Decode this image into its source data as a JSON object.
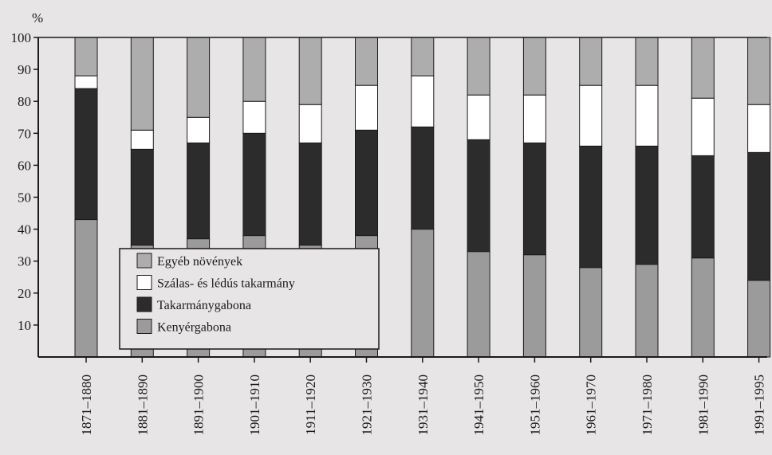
{
  "colors": {
    "background": "#e7e5e6",
    "Egyéb növények": "#adadad",
    "Szálas- és lédús takarmány": "#ffffff",
    "Takarmánygabona": "#2c2c2c",
    "Kenyérgabona": "#9b9b9b",
    "axis": "#1a1a1a"
  },
  "chart_data": {
    "type": "bar",
    "stacked": true,
    "ylabel": "%",
    "ylim": [
      0,
      100
    ],
    "yticks": [
      10,
      20,
      30,
      40,
      50,
      60,
      70,
      80,
      90,
      100
    ],
    "categories": [
      "1871–1880",
      "1881–1890",
      "1891–1900",
      "1901–1910",
      "1911–1920",
      "1921–1930",
      "1931–1940",
      "1941–1950",
      "1951–1960",
      "1961–1970",
      "1971–1980",
      "1981–1990",
      "1991–1995"
    ],
    "series": [
      {
        "name": "Kenyérgabona",
        "values": [
          43,
          35,
          37,
          38,
          35,
          38,
          40,
          33,
          32,
          28,
          29,
          31,
          24
        ]
      },
      {
        "name": "Takarmánygabona",
        "values": [
          41,
          30,
          30,
          32,
          32,
          33,
          32,
          35,
          35,
          38,
          37,
          32,
          40
        ]
      },
      {
        "name": "Szálas- és lédús takarmány",
        "values": [
          4,
          6,
          8,
          10,
          12,
          14,
          16,
          14,
          15,
          19,
          19,
          18,
          15
        ]
      },
      {
        "name": "Egyéb növények",
        "values": [
          12,
          29,
          25,
          20,
          21,
          15,
          12,
          18,
          18,
          15,
          15,
          19,
          21
        ]
      }
    ],
    "legend": {
      "placement": "bottom-left inside plot",
      "order": [
        "Egyéb növények",
        "Szálas- és lédús takarmány",
        "Takarmánygabona",
        "Kenyérgabona"
      ]
    },
    "grid": false
  }
}
